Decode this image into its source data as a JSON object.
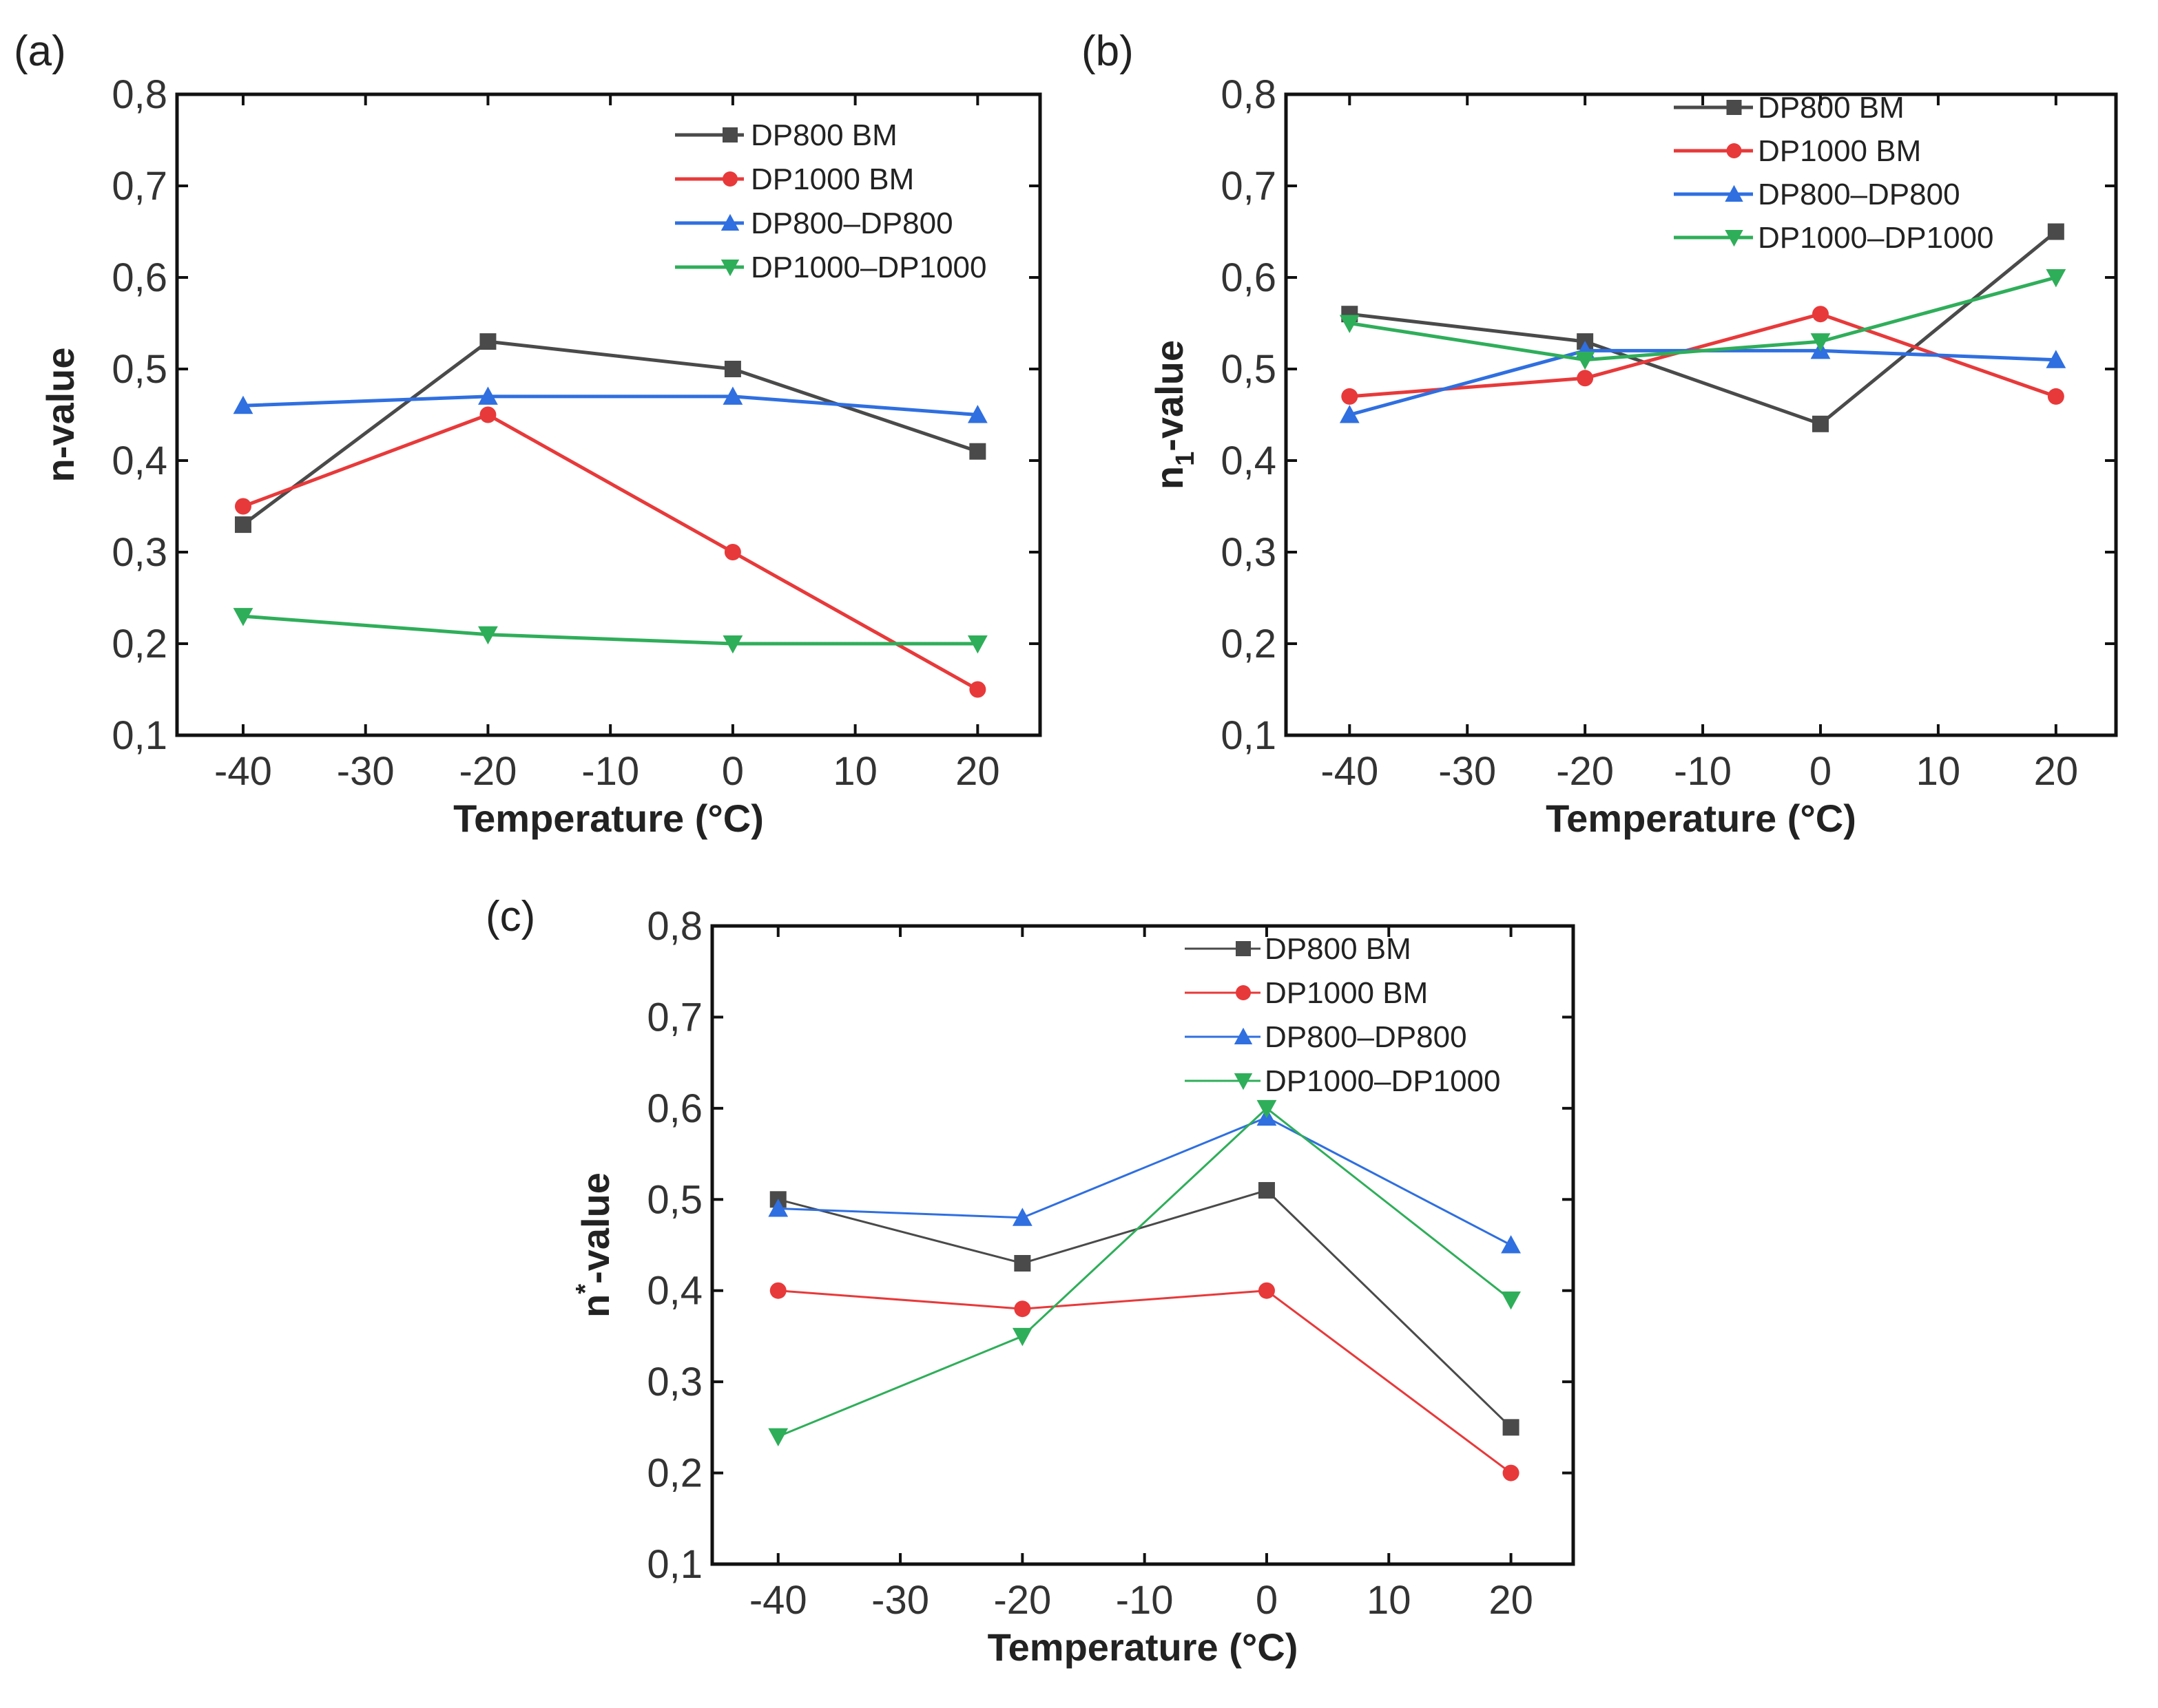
{
  "chart_data": [
    {
      "type": "line",
      "panel_label": "(a)",
      "xlabel": "Temperature (°C)",
      "ylabel": "n-value",
      "ylabel_parts": [
        "n",
        "",
        "-value"
      ],
      "x": [
        -40,
        -20,
        0,
        20
      ],
      "xlim": [
        -45.4,
        25.1
      ],
      "ylim": [
        0.1,
        0.8
      ],
      "xticks": [
        "-40",
        "-30",
        "-20",
        "-10",
        "0",
        "10",
        "20"
      ],
      "yticks": [
        "0,1",
        "0,2",
        "0,3",
        "0,4",
        "0,5",
        "0,6",
        "0,7",
        "0,8"
      ],
      "legend_position": "top-right",
      "series": [
        {
          "name": "DP800 BM",
          "color": "#4a4a4a",
          "marker": "square",
          "values": [
            0.33,
            0.53,
            0.5,
            0.41
          ]
        },
        {
          "name": "DP1000 BM",
          "color": "#e8393a",
          "marker": "circle",
          "values": [
            0.35,
            0.45,
            0.3,
            0.15
          ]
        },
        {
          "name": "DP800–DP800",
          "color": "#2f6fe0",
          "marker": "triangle-up",
          "values": [
            0.46,
            0.47,
            0.47,
            0.45
          ]
        },
        {
          "name": "DP1000–DP1000",
          "color": "#2fae5a",
          "marker": "triangle-down",
          "values": [
            0.23,
            0.21,
            0.2,
            0.2
          ]
        }
      ]
    },
    {
      "type": "line",
      "panel_label": "(b)",
      "xlabel": "Temperature (°C)",
      "ylabel": "n1-value",
      "ylabel_parts": [
        "n",
        "1",
        "-value"
      ],
      "x": [
        -40,
        -20,
        0,
        20
      ],
      "xlim": [
        -45.4,
        25.1
      ],
      "ylim": [
        0.1,
        0.8
      ],
      "xticks": [
        "-40",
        "-30",
        "-20",
        "-10",
        "0",
        "10",
        "20"
      ],
      "yticks": [
        "0,1",
        "0,2",
        "0,3",
        "0,4",
        "0,5",
        "0,6",
        "0,7",
        "0,8"
      ],
      "legend_position": "top-right",
      "series": [
        {
          "name": "DP800 BM",
          "color": "#4a4a4a",
          "marker": "square",
          "values": [
            0.56,
            0.53,
            0.44,
            0.65
          ]
        },
        {
          "name": "DP1000 BM",
          "color": "#e8393a",
          "marker": "circle",
          "values": [
            0.47,
            0.49,
            0.56,
            0.47
          ]
        },
        {
          "name": "DP800–DP800",
          "color": "#2f6fe0",
          "marker": "triangle-up",
          "values": [
            0.45,
            0.52,
            0.52,
            0.51
          ]
        },
        {
          "name": "DP1000–DP1000",
          "color": "#2fae5a",
          "marker": "triangle-down",
          "values": [
            0.55,
            0.51,
            0.53,
            0.6
          ]
        }
      ]
    },
    {
      "type": "line",
      "panel_label": "(c)",
      "xlabel": "Temperature (°C)",
      "ylabel": "n*-value",
      "ylabel_parts": [
        "n",
        "*",
        "-value"
      ],
      "x": [
        -40,
        -20,
        0,
        20
      ],
      "xlim": [
        -45.4,
        25.1
      ],
      "ylim": [
        0.1,
        0.8
      ],
      "xticks": [
        "-40",
        "-30",
        "-20",
        "-10",
        "0",
        "10",
        "20"
      ],
      "yticks": [
        "0,1",
        "0,2",
        "0,3",
        "0,4",
        "0,5",
        "0,6",
        "0,7",
        "0,8"
      ],
      "legend_position": "top-right",
      "series": [
        {
          "name": "DP800 BM",
          "color": "#4a4a4a",
          "marker": "square",
          "values": [
            0.5,
            0.43,
            0.51,
            0.25
          ]
        },
        {
          "name": "DP1000 BM",
          "color": "#e8393a",
          "marker": "circle",
          "values": [
            0.4,
            0.38,
            0.4,
            0.2
          ]
        },
        {
          "name": "DP800–DP800",
          "color": "#2f6fe0",
          "marker": "triangle-up",
          "values": [
            0.49,
            0.48,
            0.59,
            0.45
          ]
        },
        {
          "name": "DP1000–DP1000",
          "color": "#2fae5a",
          "marker": "triangle-down",
          "values": [
            0.24,
            0.35,
            0.6,
            0.39
          ]
        }
      ]
    }
  ]
}
